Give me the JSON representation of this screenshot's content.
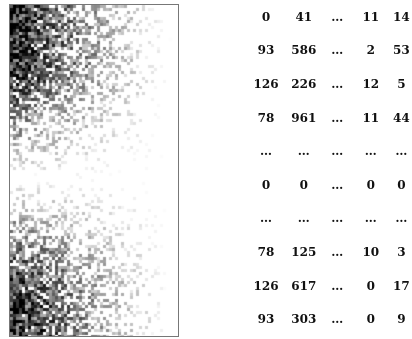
{
  "matrix": {
    "rows": [
      [
        "0",
        "41",
        "…",
        "11",
        "14"
      ],
      [
        "93",
        "586",
        "…",
        "2",
        "53"
      ],
      [
        "126",
        "226",
        "…",
        "12",
        "5"
      ],
      [
        "78",
        "961",
        "…",
        "11",
        "44"
      ],
      [
        "…",
        "…",
        "…",
        "…",
        "…"
      ],
      [
        "0",
        "0",
        "…",
        "0",
        "0"
      ],
      [
        "…",
        "…",
        "…",
        "…",
        "…"
      ],
      [
        "78",
        "125",
        "…",
        "10",
        "3"
      ],
      [
        "126",
        "617",
        "…",
        "0",
        "17"
      ],
      [
        "93",
        "303",
        "…",
        "0",
        "9"
      ]
    ]
  },
  "heatmap": {
    "color": "#000000",
    "background": "#ffffff",
    "density": "dark at left, fading to white on the right; pale band in the vertical middle"
  }
}
